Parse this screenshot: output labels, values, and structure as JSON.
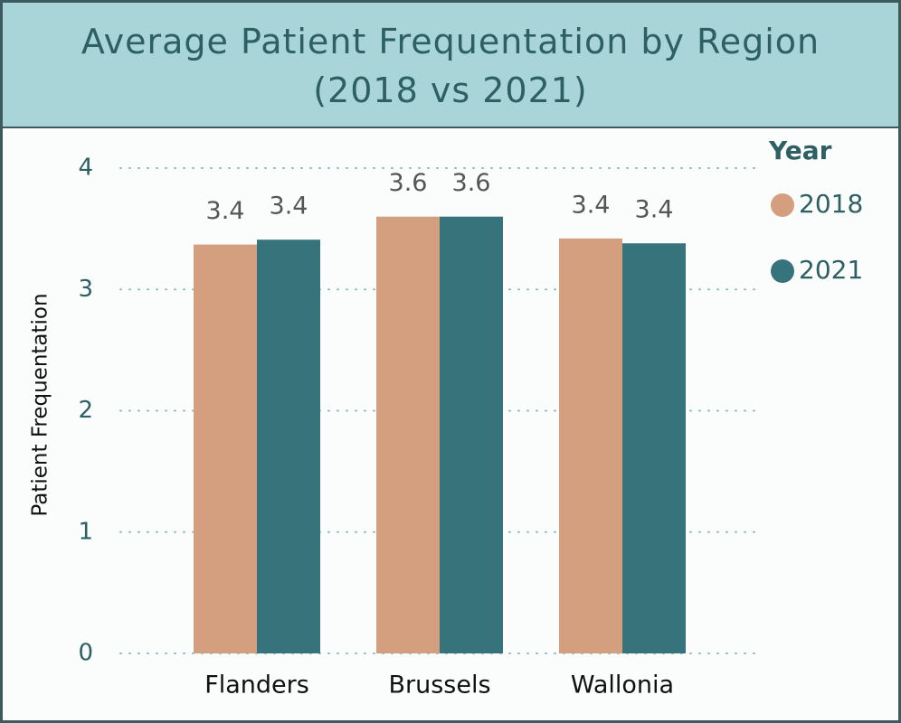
{
  "chart_data": {
    "type": "bar",
    "title": "Average Patient Frequentation by Region\n(2018 vs 2021)",
    "y_label": "Patient Frequentation",
    "legend_title": "Year",
    "categories": [
      "Flanders",
      "Brussels",
      "Wallonia"
    ],
    "series": [
      {
        "name": "2018",
        "color": "#d39f7e",
        "values": [
          3.37,
          3.6,
          3.42
        ],
        "value_labels": [
          "3.4",
          "3.6",
          "3.4"
        ]
      },
      {
        "name": "2021",
        "color": "#37737a",
        "values": [
          3.41,
          3.6,
          3.38
        ],
        "value_labels": [
          "3.4",
          "3.6",
          "3.4"
        ]
      }
    ],
    "ylim": [
      0,
      4
    ],
    "yticks": [
      0,
      1,
      2,
      3,
      4
    ],
    "grid": true,
    "legend": "right"
  }
}
